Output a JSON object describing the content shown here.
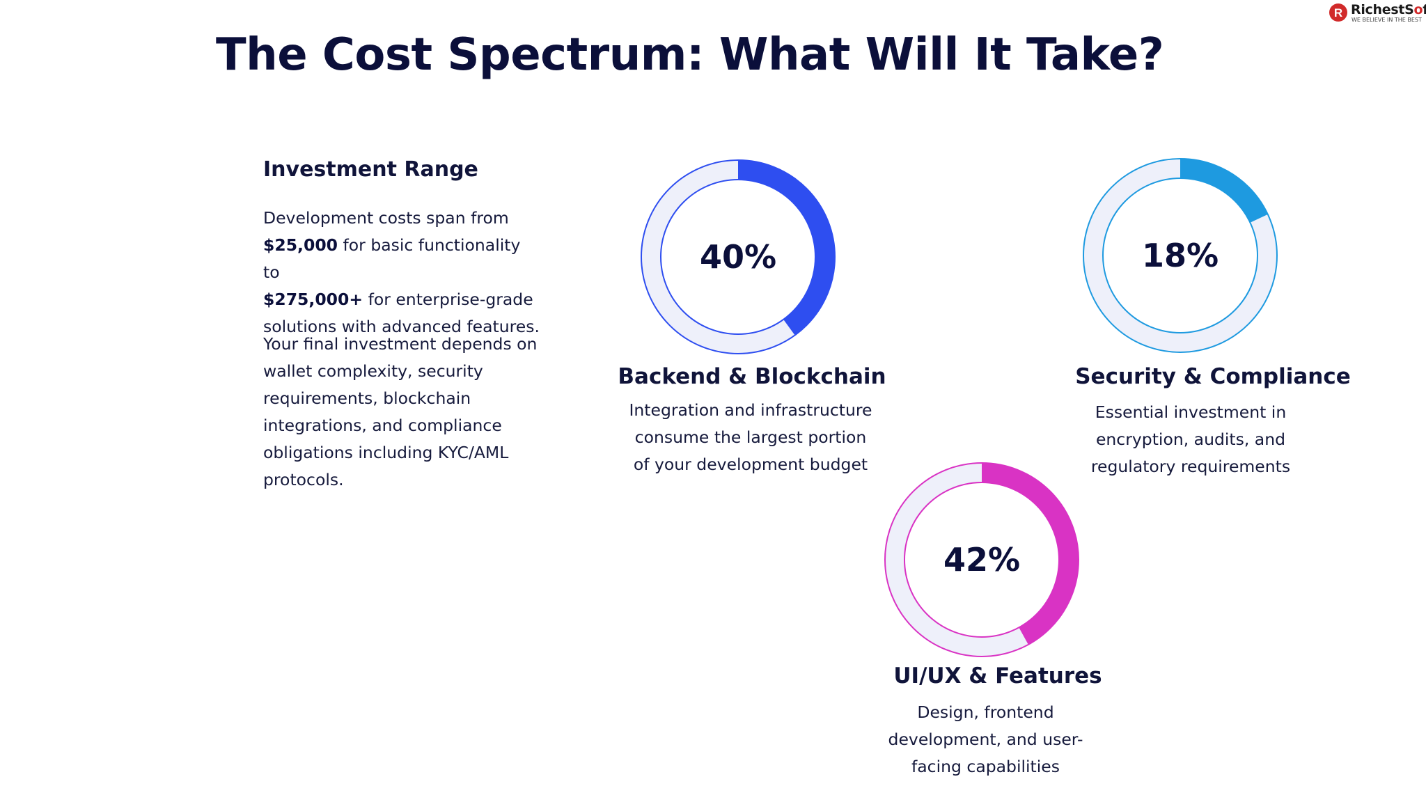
{
  "brand": {
    "name_part1": "RichestS",
    "name_part2": "ft",
    "tagline": "WE BELIEVE IN THE BEST",
    "mark_text": "R",
    "color": "#d12a2a"
  },
  "title": "The Cost Spectrum: What Will It Take?",
  "investment": {
    "heading": "Investment Range",
    "p1_pre": "Development costs span from",
    "p1_amount1": "$25,000",
    "p1_mid": "for basic functionality to",
    "p1_amount2": "$275,000+",
    "p1_post": "for enterprise-grade solutions with advanced features.",
    "p2": "Your final investment depends on wallet complexity, security requirements, blockchain integrations, and compliance obligations including KYC/AML protocols."
  },
  "segments": [
    {
      "percent_label": "40%",
      "value": 40,
      "color": "#2e4ef0",
      "title": "Backend & Blockchain",
      "desc": "Integration and infrastructure consume the largest portion of your development budget"
    },
    {
      "percent_label": "18%",
      "value": 18,
      "color": "#1e9ae0",
      "title": "Security & Compliance",
      "desc": "Essential investment in encryption, audits, and regulatory requirements"
    },
    {
      "percent_label": "42%",
      "value": 42,
      "color": "#d933c4",
      "title": "UI/UX & Features",
      "desc": "Design, frontend development, and user-facing capabilities"
    }
  ],
  "track_color": "#eef0fa"
}
